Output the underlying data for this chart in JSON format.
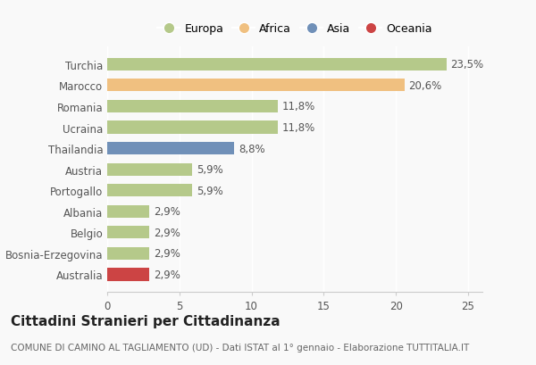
{
  "countries": [
    "Turchia",
    "Marocco",
    "Romania",
    "Ucraina",
    "Thailandia",
    "Austria",
    "Portogallo",
    "Albania",
    "Belgio",
    "Bosnia-Erzegovina",
    "Australia"
  ],
  "values": [
    23.5,
    20.6,
    11.8,
    11.8,
    8.8,
    5.9,
    5.9,
    2.9,
    2.9,
    2.9,
    2.9
  ],
  "labels": [
    "23,5%",
    "20,6%",
    "11,8%",
    "11,8%",
    "8,8%",
    "5,9%",
    "5,9%",
    "2,9%",
    "2,9%",
    "2,9%",
    "2,9%"
  ],
  "continents": [
    "Europa",
    "Africa",
    "Europa",
    "Europa",
    "Asia",
    "Europa",
    "Europa",
    "Europa",
    "Europa",
    "Europa",
    "Oceania"
  ],
  "continent_colors": {
    "Europa": "#b5c98a",
    "Africa": "#f0c080",
    "Asia": "#7090b8",
    "Oceania": "#cc4444"
  },
  "xlim": [
    0,
    26
  ],
  "xticks": [
    0,
    5,
    10,
    15,
    20,
    25
  ],
  "title": "Cittadini Stranieri per Cittadinanza",
  "subtitle": "COMUNE DI CAMINO AL TAGLIAMENTO (UD) - Dati ISTAT al 1° gennaio - Elaborazione TUTTITALIA.IT",
  "background_color": "#f9f9f9",
  "bar_height": 0.6,
  "label_fontsize": 8.5,
  "tick_fontsize": 8.5,
  "title_fontsize": 11,
  "subtitle_fontsize": 7.5,
  "legend_order": [
    "Europa",
    "Africa",
    "Asia",
    "Oceania"
  ]
}
